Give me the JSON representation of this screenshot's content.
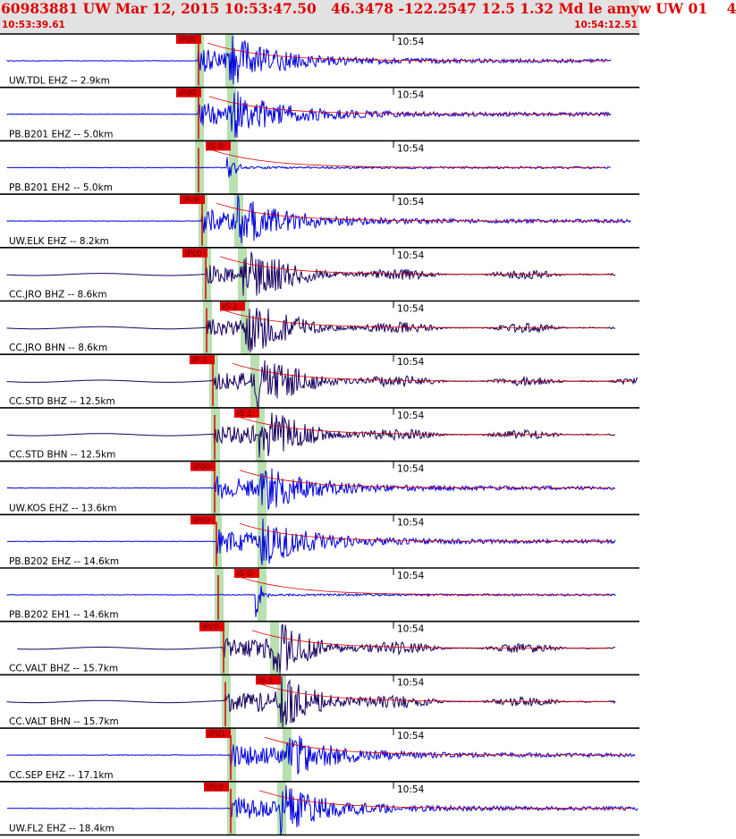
{
  "header": {
    "title": "60983881 UW Mar 12, 2015 10:53:47.50   46.3478 -122.2547 12.5 1.32 Md le amyw UW 01    4",
    "start_time": "10:53:39.61",
    "end_time": "10:54:12.51"
  },
  "colors": {
    "header_bg": "#e2e2e2",
    "header_text": "#e00000",
    "trace_blue": "#0000e0",
    "trace_navy": "#1a0060",
    "pick": "#e00000",
    "window": "#b8e0b0"
  },
  "chart_data": {
    "type": "seismogram",
    "time_range": [
      "10:53:39.61",
      "10:54:12.51"
    ],
    "time_tick": "10:54",
    "traces": [
      {
        "label": "UW.TDL EHZ -- 2.9km",
        "pick": "iPd0",
        "color": "blue"
      },
      {
        "label": "PB.B201 EHZ -- 5.0km",
        "pick": "iPd0",
        "color": "blue"
      },
      {
        "label": "PB.B201 EH2 -- 5.0km",
        "pick": "iS 0",
        "color": "blue"
      },
      {
        "label": "UW.ELK EHZ -- 8.2km",
        "pick": "iPc0",
        "color": "blue"
      },
      {
        "label": "CC.JRO BHZ -- 8.6km",
        "pick": "iPc0",
        "color": "navy"
      },
      {
        "label": "CC.JRO BHN -- 8.6km",
        "pick": "iS 1",
        "color": "navy"
      },
      {
        "label": "CC.STD BHZ -- 12.5km",
        "pick": "iP 1",
        "color": "navy"
      },
      {
        "label": "CC.STD BHN -- 12.5km",
        "pick": "iS 1",
        "color": "navy"
      },
      {
        "label": "UW.KOS EHZ -- 13.6km",
        "pick": "iPd0",
        "color": "blue"
      },
      {
        "label": "PB.B202 EHZ -- 14.6km",
        "pick": "iPc0",
        "color": "blue"
      },
      {
        "label": "PB.B202 EH1 -- 14.6km",
        "pick": "iS 0",
        "color": "blue"
      },
      {
        "label": "CC.VALT BHZ -- 15.7km",
        "pick": "iPc0",
        "color": "navy"
      },
      {
        "label": "CC.VALT BHN -- 15.7km",
        "pick": "iS 1",
        "color": "navy"
      },
      {
        "label": "CC.SEP EHZ -- 17.1km",
        "pick": "iPd1",
        "color": "blue"
      },
      {
        "label": "UW.FL2 EHZ -- 18.4km",
        "pick": "iPc0",
        "color": "blue"
      }
    ]
  }
}
